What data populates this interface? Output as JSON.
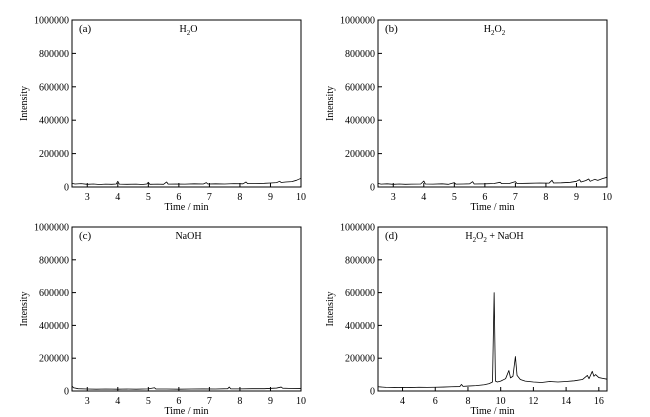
{
  "chart_data": [
    {
      "type": "line",
      "panel_letter": "(a)",
      "title": "H2O",
      "title_parts": [
        {
          "t": "H"
        },
        {
          "t": "2",
          "sub": true
        },
        {
          "t": "O"
        }
      ],
      "xlabel": "Time / min",
      "ylabel": "Intensity",
      "xlim": [
        2.5,
        10
      ],
      "ylim": [
        0,
        1000000
      ],
      "xticks": [
        3,
        4,
        5,
        6,
        7,
        8,
        9,
        10
      ],
      "yticks": [
        0,
        200000,
        400000,
        600000,
        800000,
        1000000
      ],
      "grid": false,
      "series": [
        {
          "values": [
            [
              2.5,
              22000
            ],
            [
              2.6,
              18000
            ],
            [
              2.8,
              20000
            ],
            [
              3.0,
              16000
            ],
            [
              3.2,
              18000
            ],
            [
              3.4,
              15000
            ],
            [
              3.6,
              17000
            ],
            [
              3.8,
              16000
            ],
            [
              3.95,
              18000
            ],
            [
              4.0,
              34000
            ],
            [
              4.05,
              17000
            ],
            [
              4.3,
              16000
            ],
            [
              4.6,
              17000
            ],
            [
              4.8,
              15000
            ],
            [
              4.95,
              18000
            ],
            [
              5.0,
              28000
            ],
            [
              5.05,
              16000
            ],
            [
              5.3,
              17000
            ],
            [
              5.5,
              16000
            ],
            [
              5.6,
              30000
            ],
            [
              5.65,
              17000
            ],
            [
              5.9,
              18000
            ],
            [
              6.2,
              17000
            ],
            [
              6.5,
              19000
            ],
            [
              6.8,
              18000
            ],
            [
              6.9,
              26000
            ],
            [
              6.95,
              18000
            ],
            [
              7.2,
              19000
            ],
            [
              7.5,
              18000
            ],
            [
              7.8,
              20000
            ],
            [
              8.1,
              19000
            ],
            [
              8.2,
              30000
            ],
            [
              8.25,
              20000
            ],
            [
              8.5,
              21000
            ],
            [
              8.8,
              22000
            ],
            [
              9.0,
              24000
            ],
            [
              9.2,
              26000
            ],
            [
              9.3,
              34000
            ],
            [
              9.35,
              27000
            ],
            [
              9.5,
              30000
            ],
            [
              9.7,
              32000
            ],
            [
              9.85,
              40000
            ],
            [
              10.0,
              52000
            ]
          ]
        }
      ]
    },
    {
      "type": "line",
      "panel_letter": "(b)",
      "title": "H2O2",
      "title_parts": [
        {
          "t": "H"
        },
        {
          "t": "2",
          "sub": true
        },
        {
          "t": "O"
        },
        {
          "t": "2",
          "sub": true
        }
      ],
      "xlabel": "Time / min",
      "ylabel": "Intensity",
      "xlim": [
        2.5,
        10
      ],
      "ylim": [
        0,
        1000000
      ],
      "xticks": [
        3,
        4,
        5,
        6,
        7,
        8,
        9,
        10
      ],
      "yticks": [
        0,
        200000,
        400000,
        600000,
        800000,
        1000000
      ],
      "grid": false,
      "series": [
        {
          "values": [
            [
              2.5,
              22000
            ],
            [
              2.6,
              17000
            ],
            [
              2.8,
              19000
            ],
            [
              3.0,
              16000
            ],
            [
              3.2,
              18000
            ],
            [
              3.4,
              16000
            ],
            [
              3.6,
              17000
            ],
            [
              3.9,
              18000
            ],
            [
              4.0,
              36000
            ],
            [
              4.05,
              18000
            ],
            [
              4.3,
              17000
            ],
            [
              4.6,
              19000
            ],
            [
              4.8,
              16000
            ],
            [
              5.0,
              26000
            ],
            [
              5.05,
              17000
            ],
            [
              5.3,
              18000
            ],
            [
              5.5,
              19000
            ],
            [
              5.6,
              32000
            ],
            [
              5.65,
              18000
            ],
            [
              6.0,
              19000
            ],
            [
              6.3,
              21000
            ],
            [
              6.5,
              28000
            ],
            [
              6.55,
              20000
            ],
            [
              6.8,
              21000
            ],
            [
              7.0,
              32000
            ],
            [
              7.05,
              21000
            ],
            [
              7.4,
              22000
            ],
            [
              7.8,
              24000
            ],
            [
              8.1,
              23000
            ],
            [
              8.2,
              40000
            ],
            [
              8.25,
              24000
            ],
            [
              8.5,
              25000
            ],
            [
              8.8,
              28000
            ],
            [
              9.0,
              34000
            ],
            [
              9.1,
              44000
            ],
            [
              9.15,
              30000
            ],
            [
              9.3,
              38000
            ],
            [
              9.4,
              48000
            ],
            [
              9.45,
              34000
            ],
            [
              9.6,
              46000
            ],
            [
              9.7,
              40000
            ],
            [
              9.85,
              50000
            ],
            [
              10.0,
              58000
            ]
          ]
        }
      ]
    },
    {
      "type": "line",
      "panel_letter": "(c)",
      "title": "NaOH",
      "title_parts": [
        {
          "t": "NaOH"
        }
      ],
      "xlabel": "Time / min",
      "ylabel": "Intensity",
      "xlim": [
        2.5,
        10
      ],
      "ylim": [
        0,
        1000000
      ],
      "xticks": [
        3,
        4,
        5,
        6,
        7,
        8,
        9,
        10
      ],
      "yticks": [
        0,
        200000,
        400000,
        600000,
        800000,
        1000000
      ],
      "grid": false,
      "series": [
        {
          "values": [
            [
              2.5,
              30000
            ],
            [
              2.55,
              20000
            ],
            [
              2.7,
              14000
            ],
            [
              3.0,
              12000
            ],
            [
              3.3,
              11000
            ],
            [
              3.6,
              12000
            ],
            [
              4.0,
              11000
            ],
            [
              4.3,
              12000
            ],
            [
              4.6,
              11000
            ],
            [
              5.0,
              13000
            ],
            [
              5.2,
              20000
            ],
            [
              5.25,
              12000
            ],
            [
              5.6,
              12000
            ],
            [
              6.0,
              11000
            ],
            [
              6.4,
              12000
            ],
            [
              6.8,
              13000
            ],
            [
              7.2,
              12000
            ],
            [
              7.6,
              14000
            ],
            [
              7.65,
              24000
            ],
            [
              7.7,
              13000
            ],
            [
              8.0,
              13000
            ],
            [
              8.4,
              14000
            ],
            [
              8.8,
              14000
            ],
            [
              9.2,
              18000
            ],
            [
              9.35,
              24000
            ],
            [
              9.4,
              17000
            ],
            [
              9.6,
              16000
            ],
            [
              10.0,
              15000
            ]
          ]
        }
      ]
    },
    {
      "type": "line",
      "panel_letter": "(d)",
      "title": "H2O2 + NaOH",
      "title_parts": [
        {
          "t": "H"
        },
        {
          "t": "2",
          "sub": true
        },
        {
          "t": "O"
        },
        {
          "t": "2",
          "sub": true
        },
        {
          "t": " + NaOH"
        }
      ],
      "xlabel": "Time / min",
      "ylabel": "Intensity",
      "xlim": [
        2.5,
        16.5
      ],
      "ylim": [
        0,
        1000000
      ],
      "xticks": [
        4,
        6,
        8,
        10,
        12,
        14,
        16
      ],
      "yticks": [
        0,
        200000,
        400000,
        600000,
        800000,
        1000000
      ],
      "grid": false,
      "series": [
        {
          "values": [
            [
              2.5,
              26000
            ],
            [
              3.0,
              22000
            ],
            [
              3.5,
              21000
            ],
            [
              4.0,
              22000
            ],
            [
              4.5,
              21000
            ],
            [
              5.0,
              23000
            ],
            [
              5.5,
              22000
            ],
            [
              6.0,
              23000
            ],
            [
              6.5,
              24000
            ],
            [
              7.0,
              26000
            ],
            [
              7.5,
              27000
            ],
            [
              7.6,
              40000
            ],
            [
              7.7,
              28000
            ],
            [
              8.0,
              30000
            ],
            [
              8.5,
              33000
            ],
            [
              9.0,
              38000
            ],
            [
              9.3,
              45000
            ],
            [
              9.5,
              55000
            ],
            [
              9.6,
              600000
            ],
            [
              9.68,
              60000
            ],
            [
              9.8,
              55000
            ],
            [
              10.0,
              60000
            ],
            [
              10.3,
              75000
            ],
            [
              10.5,
              125000
            ],
            [
              10.6,
              80000
            ],
            [
              10.75,
              90000
            ],
            [
              10.9,
              210000
            ],
            [
              11.0,
              95000
            ],
            [
              11.2,
              70000
            ],
            [
              11.5,
              60000
            ],
            [
              12.0,
              55000
            ],
            [
              12.5,
              52000
            ],
            [
              13.0,
              58000
            ],
            [
              13.5,
              55000
            ],
            [
              14.0,
              58000
            ],
            [
              14.5,
              62000
            ],
            [
              15.0,
              70000
            ],
            [
              15.3,
              95000
            ],
            [
              15.4,
              75000
            ],
            [
              15.6,
              120000
            ],
            [
              15.7,
              90000
            ],
            [
              15.8,
              100000
            ],
            [
              16.0,
              82000
            ],
            [
              16.2,
              78000
            ],
            [
              16.5,
              72000
            ]
          ]
        }
      ]
    }
  ]
}
